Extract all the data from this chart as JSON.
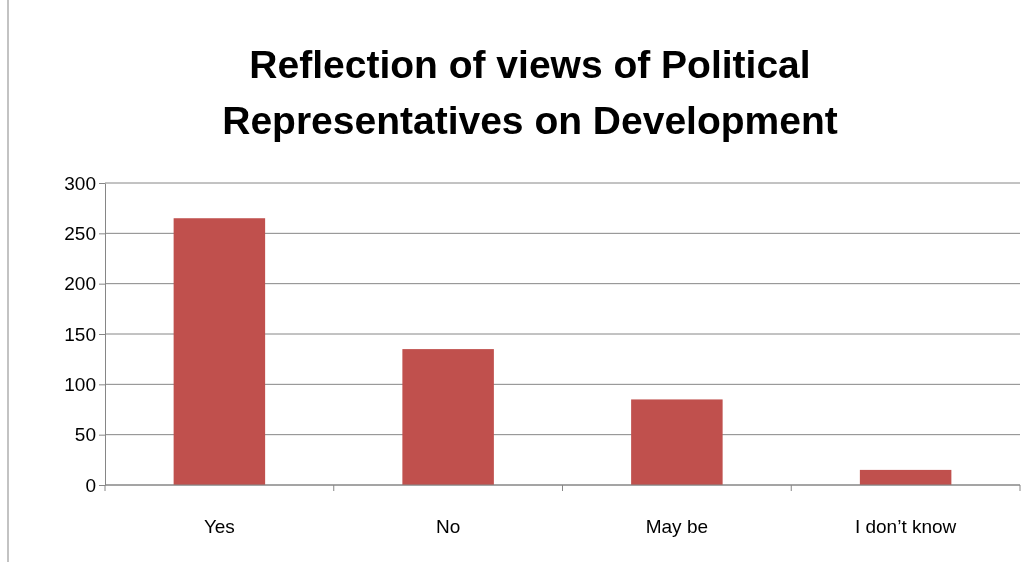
{
  "chart_data": {
    "type": "bar",
    "title": "Reflection of views of Political Representatives on Development",
    "categories": [
      "Yes",
      "No",
      "May be",
      "I don’t know"
    ],
    "values": [
      265,
      135,
      85,
      15
    ],
    "color": "#c0504d",
    "ylim": [
      0,
      300
    ],
    "yticks": [
      0,
      50,
      100,
      150,
      200,
      250,
      300
    ],
    "grid": "y"
  }
}
